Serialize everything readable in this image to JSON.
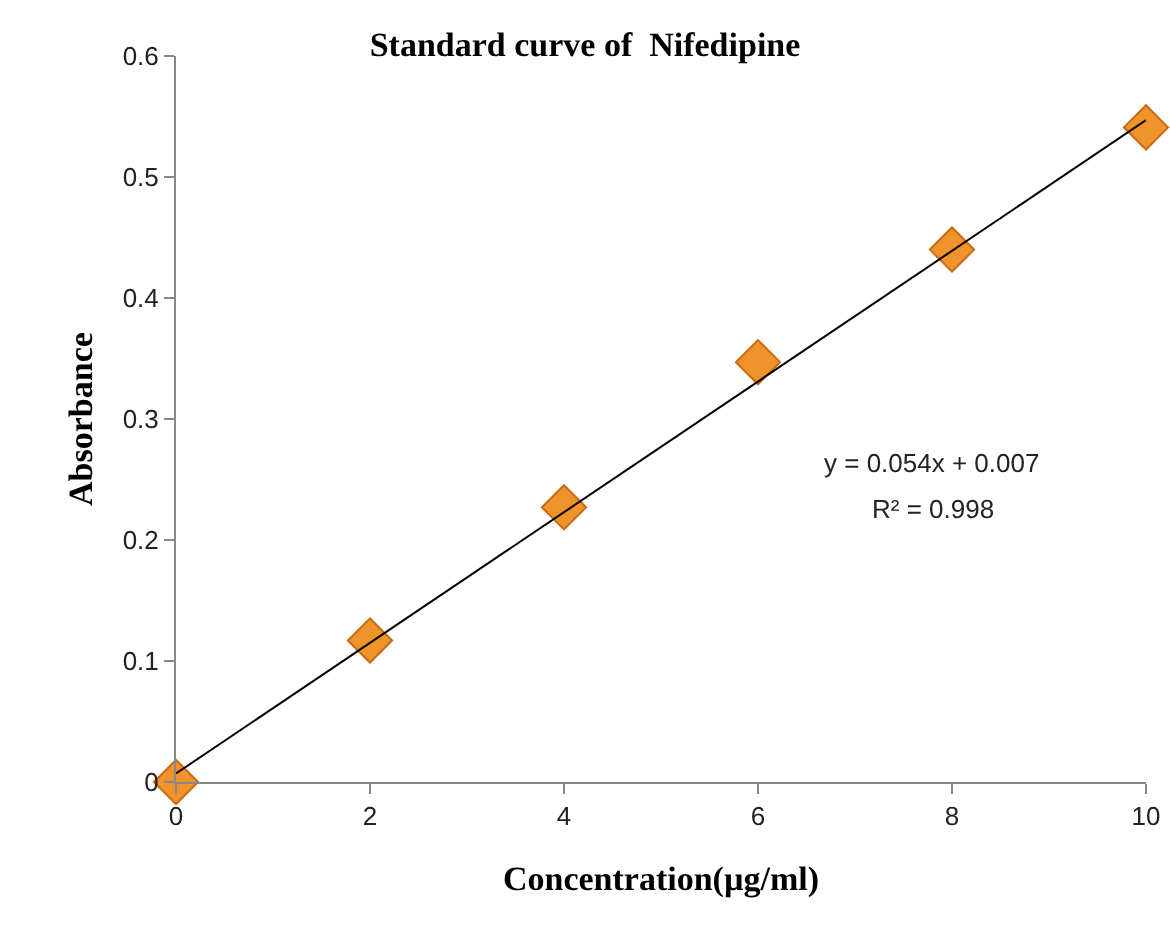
{
  "chart_data": {
    "type": "scatter",
    "title": "Standard curve of  Nifedipine",
    "xlabel": "Concentration(µg/ml)",
    "ylabel": "Absorbance",
    "x": [
      0,
      2,
      4,
      6,
      8,
      10
    ],
    "series": [
      {
        "color": "#f0932a",
        "marker": "diamond",
        "values": [
          0,
          0.117,
          0.227,
          0.347,
          0.44,
          0.541
        ]
      },
      {
        "type": "line",
        "color": "#000000",
        "x": [
          0,
          10
        ],
        "values": [
          0.007,
          0.547
        ],
        "marker": "none",
        "line_style": "solid"
      }
    ],
    "annotations": [
      "y = 0.054x + 0.007",
      "R² = 0.998"
    ],
    "xlim": [
      0,
      10
    ],
    "xticks": [
      0,
      2,
      4,
      6,
      8,
      10
    ],
    "ylim": [
      0,
      0.6
    ],
    "yticks": [
      0,
      0.1,
      0.2,
      0.3,
      0.4,
      0.5,
      0.6
    ],
    "grid": false,
    "legend": false
  }
}
